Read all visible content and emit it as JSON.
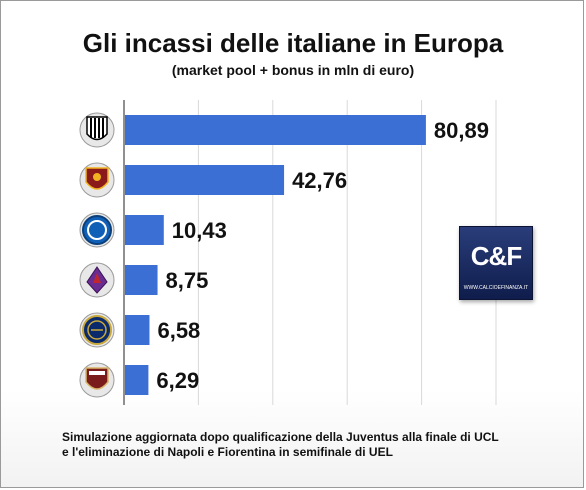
{
  "header": {
    "title": "Gli incassi delle italiane in Europa",
    "subtitle": "(market pool + bonus in mln di euro)"
  },
  "chart_data": {
    "type": "bar",
    "orientation": "horizontal",
    "title": "Gli incassi delle italiane in Europa",
    "subtitle": "(market pool + bonus in mln di euro)",
    "categories": [
      "Juventus",
      "Roma",
      "Napoli",
      "Fiorentina",
      "Inter",
      "Torino"
    ],
    "values": [
      80.89,
      42.76,
      10.43,
      8.75,
      6.58,
      6.29
    ],
    "value_labels": [
      "80,89",
      "42,76",
      "10,43",
      "8,75",
      "6,58",
      "6,29"
    ],
    "xlim": [
      0,
      100
    ],
    "grid": true,
    "legend": "none",
    "bar_color": "#3b6fd4"
  },
  "club_icons": [
    "juventus-crest-icon",
    "roma-crest-icon",
    "napoli-crest-icon",
    "fiorentina-crest-icon",
    "inter-crest-icon",
    "torino-crest-icon"
  ],
  "badge": {
    "mark": "C&F",
    "url": "WWW.CALCIOEFINANZA.IT"
  },
  "footnote": {
    "line1": "Simulazione aggiornata dopo qualificazione della Juventus alla finale di UCL",
    "line2": "e l'eliminazione di Napoli e Fiorentina in semifinale di UEL"
  }
}
